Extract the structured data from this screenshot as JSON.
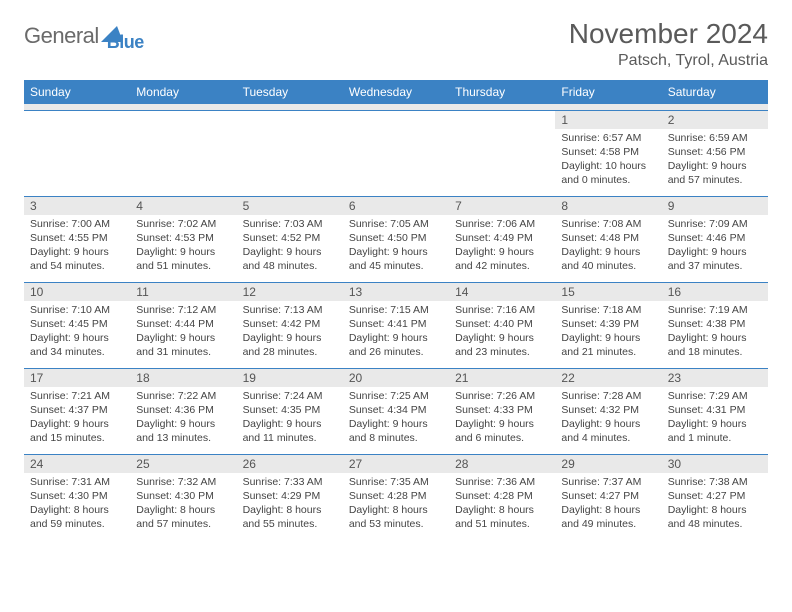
{
  "logo": {
    "text1": "General",
    "text2": "Blue"
  },
  "title": "November 2024",
  "location": "Patsch, Tyrol, Austria",
  "colors": {
    "header_bg": "#3b82c4",
    "header_text": "#ffffff",
    "daynum_bg": "#e9e9e9",
    "border": "#3b82c4",
    "body_text": "#444444"
  },
  "weekdays": [
    "Sunday",
    "Monday",
    "Tuesday",
    "Wednesday",
    "Thursday",
    "Friday",
    "Saturday"
  ],
  "weeks": [
    [
      {
        "n": "",
        "sr": "",
        "ss": "",
        "dl": ""
      },
      {
        "n": "",
        "sr": "",
        "ss": "",
        "dl": ""
      },
      {
        "n": "",
        "sr": "",
        "ss": "",
        "dl": ""
      },
      {
        "n": "",
        "sr": "",
        "ss": "",
        "dl": ""
      },
      {
        "n": "",
        "sr": "",
        "ss": "",
        "dl": ""
      },
      {
        "n": "1",
        "sr": "Sunrise: 6:57 AM",
        "ss": "Sunset: 4:58 PM",
        "dl": "Daylight: 10 hours and 0 minutes."
      },
      {
        "n": "2",
        "sr": "Sunrise: 6:59 AM",
        "ss": "Sunset: 4:56 PM",
        "dl": "Daylight: 9 hours and 57 minutes."
      }
    ],
    [
      {
        "n": "3",
        "sr": "Sunrise: 7:00 AM",
        "ss": "Sunset: 4:55 PM",
        "dl": "Daylight: 9 hours and 54 minutes."
      },
      {
        "n": "4",
        "sr": "Sunrise: 7:02 AM",
        "ss": "Sunset: 4:53 PM",
        "dl": "Daylight: 9 hours and 51 minutes."
      },
      {
        "n": "5",
        "sr": "Sunrise: 7:03 AM",
        "ss": "Sunset: 4:52 PM",
        "dl": "Daylight: 9 hours and 48 minutes."
      },
      {
        "n": "6",
        "sr": "Sunrise: 7:05 AM",
        "ss": "Sunset: 4:50 PM",
        "dl": "Daylight: 9 hours and 45 minutes."
      },
      {
        "n": "7",
        "sr": "Sunrise: 7:06 AM",
        "ss": "Sunset: 4:49 PM",
        "dl": "Daylight: 9 hours and 42 minutes."
      },
      {
        "n": "8",
        "sr": "Sunrise: 7:08 AM",
        "ss": "Sunset: 4:48 PM",
        "dl": "Daylight: 9 hours and 40 minutes."
      },
      {
        "n": "9",
        "sr": "Sunrise: 7:09 AM",
        "ss": "Sunset: 4:46 PM",
        "dl": "Daylight: 9 hours and 37 minutes."
      }
    ],
    [
      {
        "n": "10",
        "sr": "Sunrise: 7:10 AM",
        "ss": "Sunset: 4:45 PM",
        "dl": "Daylight: 9 hours and 34 minutes."
      },
      {
        "n": "11",
        "sr": "Sunrise: 7:12 AM",
        "ss": "Sunset: 4:44 PM",
        "dl": "Daylight: 9 hours and 31 minutes."
      },
      {
        "n": "12",
        "sr": "Sunrise: 7:13 AM",
        "ss": "Sunset: 4:42 PM",
        "dl": "Daylight: 9 hours and 28 minutes."
      },
      {
        "n": "13",
        "sr": "Sunrise: 7:15 AM",
        "ss": "Sunset: 4:41 PM",
        "dl": "Daylight: 9 hours and 26 minutes."
      },
      {
        "n": "14",
        "sr": "Sunrise: 7:16 AM",
        "ss": "Sunset: 4:40 PM",
        "dl": "Daylight: 9 hours and 23 minutes."
      },
      {
        "n": "15",
        "sr": "Sunrise: 7:18 AM",
        "ss": "Sunset: 4:39 PM",
        "dl": "Daylight: 9 hours and 21 minutes."
      },
      {
        "n": "16",
        "sr": "Sunrise: 7:19 AM",
        "ss": "Sunset: 4:38 PM",
        "dl": "Daylight: 9 hours and 18 minutes."
      }
    ],
    [
      {
        "n": "17",
        "sr": "Sunrise: 7:21 AM",
        "ss": "Sunset: 4:37 PM",
        "dl": "Daylight: 9 hours and 15 minutes."
      },
      {
        "n": "18",
        "sr": "Sunrise: 7:22 AM",
        "ss": "Sunset: 4:36 PM",
        "dl": "Daylight: 9 hours and 13 minutes."
      },
      {
        "n": "19",
        "sr": "Sunrise: 7:24 AM",
        "ss": "Sunset: 4:35 PM",
        "dl": "Daylight: 9 hours and 11 minutes."
      },
      {
        "n": "20",
        "sr": "Sunrise: 7:25 AM",
        "ss": "Sunset: 4:34 PM",
        "dl": "Daylight: 9 hours and 8 minutes."
      },
      {
        "n": "21",
        "sr": "Sunrise: 7:26 AM",
        "ss": "Sunset: 4:33 PM",
        "dl": "Daylight: 9 hours and 6 minutes."
      },
      {
        "n": "22",
        "sr": "Sunrise: 7:28 AM",
        "ss": "Sunset: 4:32 PM",
        "dl": "Daylight: 9 hours and 4 minutes."
      },
      {
        "n": "23",
        "sr": "Sunrise: 7:29 AM",
        "ss": "Sunset: 4:31 PM",
        "dl": "Daylight: 9 hours and 1 minute."
      }
    ],
    [
      {
        "n": "24",
        "sr": "Sunrise: 7:31 AM",
        "ss": "Sunset: 4:30 PM",
        "dl": "Daylight: 8 hours and 59 minutes."
      },
      {
        "n": "25",
        "sr": "Sunrise: 7:32 AM",
        "ss": "Sunset: 4:30 PM",
        "dl": "Daylight: 8 hours and 57 minutes."
      },
      {
        "n": "26",
        "sr": "Sunrise: 7:33 AM",
        "ss": "Sunset: 4:29 PM",
        "dl": "Daylight: 8 hours and 55 minutes."
      },
      {
        "n": "27",
        "sr": "Sunrise: 7:35 AM",
        "ss": "Sunset: 4:28 PM",
        "dl": "Daylight: 8 hours and 53 minutes."
      },
      {
        "n": "28",
        "sr": "Sunrise: 7:36 AM",
        "ss": "Sunset: 4:28 PM",
        "dl": "Daylight: 8 hours and 51 minutes."
      },
      {
        "n": "29",
        "sr": "Sunrise: 7:37 AM",
        "ss": "Sunset: 4:27 PM",
        "dl": "Daylight: 8 hours and 49 minutes."
      },
      {
        "n": "30",
        "sr": "Sunrise: 7:38 AM",
        "ss": "Sunset: 4:27 PM",
        "dl": "Daylight: 8 hours and 48 minutes."
      }
    ]
  ]
}
